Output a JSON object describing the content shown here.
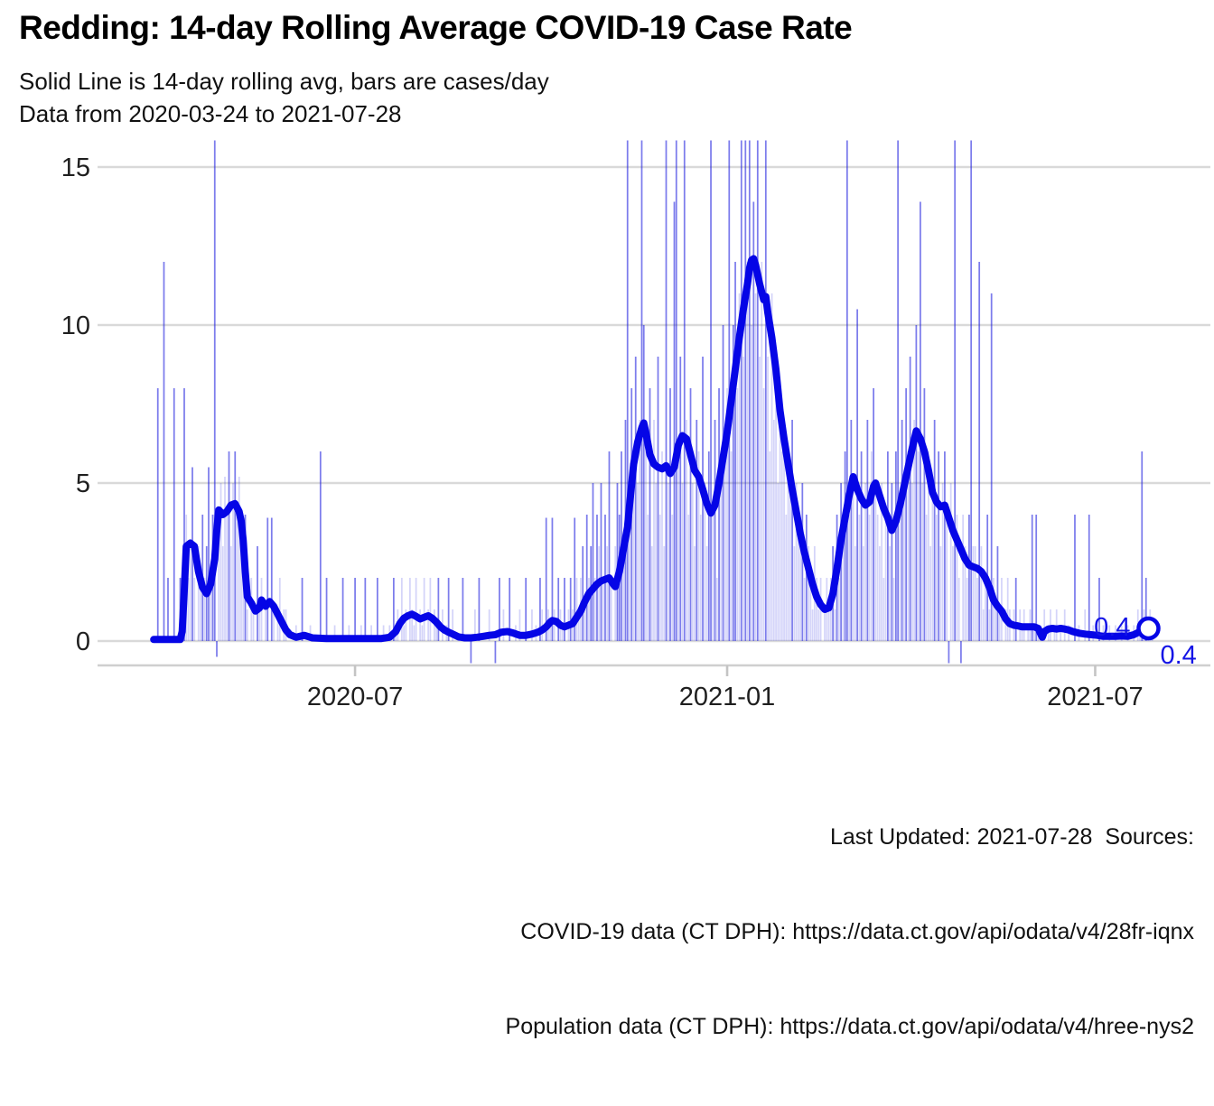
{
  "title": "Redding: 14-day Rolling Average COVID-19 Case Rate",
  "subtitle": {
    "line1": "Solid Line is 14-day rolling avg, bars are cases/day",
    "line2": "Data from 2020-03-24 to 2021-07-28"
  },
  "caption": {
    "line1": "Last Updated: 2021-07-28  Sources:",
    "line2": "COVID-19 data (CT DPH): https://data.ct.gov/api/odata/v4/28fr-iqnx",
    "line3": "Population data (CT DPH): https://data.ct.gov/api/odata/v4/hree-nys2"
  },
  "colors": {
    "line": "#0505e6",
    "bar": "#1010dc",
    "grid": "#d9d9d9",
    "axis_line": "#cfcfcf",
    "tick_mark": "#c4c4c4",
    "tick_text": "#1f1f1f",
    "endpoint_label": "#1414e6",
    "background": "#ffffff"
  },
  "chart_data": {
    "type": "bar",
    "title": "Redding: 14-day Rolling Average COVID-19 Case Rate",
    "xlabel": "",
    "ylabel": "",
    "start_date": "2020-03-24",
    "end_date": "2021-07-28",
    "ylim": [
      -0.77,
      15.86
    ],
    "grid": "horizontal",
    "legend": "none",
    "y_ticks": [
      0,
      5,
      10,
      15
    ],
    "x_ticks": [
      {
        "label": "2020-07",
        "day": 99
      },
      {
        "label": "2021-01",
        "day": 282
      },
      {
        "label": "2021-07",
        "day": 463
      }
    ],
    "endpoint": {
      "day": 491,
      "value": 0.4,
      "label_left": "0.4",
      "label_right": "0.4"
    },
    "rolling_avg_line": [
      [
        0,
        0.05
      ],
      [
        13,
        0.05
      ],
      [
        14,
        0.3
      ],
      [
        15,
        1.6
      ],
      [
        16,
        3
      ],
      [
        18,
        3.1
      ],
      [
        20,
        3
      ],
      [
        22,
        2.2
      ],
      [
        24,
        1.7
      ],
      [
        26,
        1.5
      ],
      [
        28,
        1.8
      ],
      [
        30,
        2.6
      ],
      [
        31,
        3.5
      ],
      [
        32,
        4.15
      ],
      [
        34,
        4
      ],
      [
        36,
        4.1
      ],
      [
        38,
        4.3
      ],
      [
        40,
        4.35
      ],
      [
        42,
        4.1
      ],
      [
        43,
        3.8
      ],
      [
        44,
        3.2
      ],
      [
        45,
        2.2
      ],
      [
        46,
        1.4
      ],
      [
        48,
        1.2
      ],
      [
        50,
        0.95
      ],
      [
        52,
        1.05
      ],
      [
        53,
        1.3
      ],
      [
        55,
        1.1
      ],
      [
        57,
        1.25
      ],
      [
        59,
        1.1
      ],
      [
        61,
        0.85
      ],
      [
        63,
        0.6
      ],
      [
        65,
        0.35
      ],
      [
        67,
        0.2
      ],
      [
        70,
        0.12
      ],
      [
        74,
        0.18
      ],
      [
        78,
        0.1
      ],
      [
        85,
        0.08
      ],
      [
        95,
        0.08
      ],
      [
        105,
        0.08
      ],
      [
        112,
        0.08
      ],
      [
        116,
        0.12
      ],
      [
        119,
        0.3
      ],
      [
        121,
        0.55
      ],
      [
        123,
        0.72
      ],
      [
        125,
        0.8
      ],
      [
        127,
        0.85
      ],
      [
        129,
        0.78
      ],
      [
        131,
        0.7
      ],
      [
        133,
        0.75
      ],
      [
        135,
        0.8
      ],
      [
        137,
        0.72
      ],
      [
        139,
        0.6
      ],
      [
        141,
        0.45
      ],
      [
        143,
        0.35
      ],
      [
        145,
        0.28
      ],
      [
        147,
        0.22
      ],
      [
        150,
        0.13
      ],
      [
        153,
        0.1
      ],
      [
        156,
        0.1
      ],
      [
        159,
        0.12
      ],
      [
        162,
        0.15
      ],
      [
        165,
        0.18
      ],
      [
        168,
        0.2
      ],
      [
        171,
        0.28
      ],
      [
        174,
        0.3
      ],
      [
        177,
        0.25
      ],
      [
        180,
        0.18
      ],
      [
        183,
        0.18
      ],
      [
        186,
        0.22
      ],
      [
        189,
        0.28
      ],
      [
        191,
        0.35
      ],
      [
        193,
        0.45
      ],
      [
        195,
        0.6
      ],
      [
        196,
        0.65
      ],
      [
        198,
        0.62
      ],
      [
        200,
        0.5
      ],
      [
        202,
        0.45
      ],
      [
        204,
        0.5
      ],
      [
        206,
        0.55
      ],
      [
        208,
        0.75
      ],
      [
        210,
        0.95
      ],
      [
        212,
        1.25
      ],
      [
        214,
        1.5
      ],
      [
        216,
        1.65
      ],
      [
        218,
        1.8
      ],
      [
        220,
        1.9
      ],
      [
        222,
        1.95
      ],
      [
        224,
        2
      ],
      [
        226,
        1.8
      ],
      [
        227,
        1.72
      ],
      [
        229,
        2.2
      ],
      [
        231,
        2.9
      ],
      [
        233,
        3.6
      ],
      [
        234,
        4.3
      ],
      [
        236,
        5.6
      ],
      [
        238,
        6.3
      ],
      [
        240,
        6.75
      ],
      [
        241,
        6.9
      ],
      [
        242,
        6.6
      ],
      [
        244,
        5.9
      ],
      [
        246,
        5.6
      ],
      [
        248,
        5.5
      ],
      [
        250,
        5.45
      ],
      [
        252,
        5.55
      ],
      [
        254,
        5.3
      ],
      [
        256,
        5.5
      ],
      [
        258,
        6.2
      ],
      [
        260,
        6.5
      ],
      [
        262,
        6.4
      ],
      [
        264,
        5.9
      ],
      [
        266,
        5.4
      ],
      [
        268,
        5.2
      ],
      [
        270,
        4.8
      ],
      [
        272,
        4.35
      ],
      [
        274,
        4.05
      ],
      [
        276,
        4.3
      ],
      [
        278,
        5
      ],
      [
        280,
        5.8
      ],
      [
        282,
        6.6
      ],
      [
        284,
        7.6
      ],
      [
        286,
        8.6
      ],
      [
        288,
        9.6
      ],
      [
        290,
        10.5
      ],
      [
        292,
        11.3
      ],
      [
        293,
        11.8
      ],
      [
        294,
        12.05
      ],
      [
        295,
        12.1
      ],
      [
        296,
        11.9
      ],
      [
        298,
        11.3
      ],
      [
        300,
        10.8
      ],
      [
        301,
        10.9
      ],
      [
        302,
        10.4
      ],
      [
        304,
        9.6
      ],
      [
        306,
        8.6
      ],
      [
        308,
        7.3
      ],
      [
        310,
        6.4
      ],
      [
        312,
        5.6
      ],
      [
        314,
        4.8
      ],
      [
        316,
        4.1
      ],
      [
        318,
        3.4
      ],
      [
        320,
        2.8
      ],
      [
        322,
        2.3
      ],
      [
        324,
        1.8
      ],
      [
        326,
        1.4
      ],
      [
        328,
        1.15
      ],
      [
        330,
        1
      ],
      [
        332,
        1.05
      ],
      [
        334,
        1.5
      ],
      [
        336,
        2.3
      ],
      [
        338,
        3.2
      ],
      [
        340,
        3.9
      ],
      [
        342,
        4.6
      ],
      [
        344,
        5.2
      ],
      [
        346,
        4.8
      ],
      [
        348,
        4.5
      ],
      [
        350,
        4.3
      ],
      [
        352,
        4.4
      ],
      [
        354,
        4.9
      ],
      [
        355,
        5
      ],
      [
        357,
        4.6
      ],
      [
        359,
        4.2
      ],
      [
        361,
        3.9
      ],
      [
        363,
        3.5
      ],
      [
        365,
        3.8
      ],
      [
        367,
        4.3
      ],
      [
        369,
        4.9
      ],
      [
        371,
        5.5
      ],
      [
        373,
        6.1
      ],
      [
        375,
        6.65
      ],
      [
        377,
        6.4
      ],
      [
        379,
        6
      ],
      [
        381,
        5.4
      ],
      [
        383,
        4.7
      ],
      [
        385,
        4.4
      ],
      [
        387,
        4.25
      ],
      [
        389,
        4.3
      ],
      [
        391,
        3.9
      ],
      [
        393,
        3.5
      ],
      [
        395,
        3.2
      ],
      [
        397,
        2.9
      ],
      [
        399,
        2.6
      ],
      [
        401,
        2.4
      ],
      [
        403,
        2.35
      ],
      [
        405,
        2.3
      ],
      [
        407,
        2.2
      ],
      [
        409,
        2
      ],
      [
        411,
        1.7
      ],
      [
        413,
        1.3
      ],
      [
        415,
        1.1
      ],
      [
        417,
        0.95
      ],
      [
        419,
        0.7
      ],
      [
        421,
        0.55
      ],
      [
        423,
        0.5
      ],
      [
        425,
        0.48
      ],
      [
        427,
        0.45
      ],
      [
        429,
        0.45
      ],
      [
        431,
        0.45
      ],
      [
        433,
        0.45
      ],
      [
        435,
        0.4
      ],
      [
        436,
        0.25
      ],
      [
        437,
        0.12
      ],
      [
        438,
        0.3
      ],
      [
        440,
        0.38
      ],
      [
        442,
        0.4
      ],
      [
        444,
        0.38
      ],
      [
        446,
        0.4
      ],
      [
        448,
        0.38
      ],
      [
        450,
        0.35
      ],
      [
        452,
        0.3
      ],
      [
        455,
        0.25
      ],
      [
        458,
        0.22
      ],
      [
        461,
        0.2
      ],
      [
        464,
        0.18
      ],
      [
        467,
        0.15
      ],
      [
        470,
        0.15
      ],
      [
        473,
        0.15
      ],
      [
        476,
        0.16
      ],
      [
        479,
        0.15
      ],
      [
        482,
        0.2
      ],
      [
        485,
        0.3
      ],
      [
        488,
        0.38
      ],
      [
        491,
        0.4
      ]
    ],
    "daily_cases_bars": [
      0,
      0,
      8,
      0,
      0,
      12,
      0,
      2,
      0,
      0,
      8,
      0,
      0,
      2,
      2,
      8,
      4,
      2,
      3,
      5.5,
      2,
      0,
      3,
      2,
      4,
      2,
      3,
      5.5,
      2,
      4,
      15.9,
      -0.5,
      4,
      5,
      3,
      5.2,
      4,
      6,
      3,
      5,
      6,
      4,
      5.2,
      3,
      2,
      4,
      1,
      0,
      2,
      1,
      0,
      3,
      1,
      2,
      0,
      1,
      3.9,
      0,
      3.9,
      1,
      0,
      1,
      2,
      0,
      1,
      1,
      0,
      0,
      0,
      0,
      0.5,
      0,
      0,
      2,
      0,
      0,
      0,
      0.5,
      0,
      0,
      0,
      0,
      6,
      0,
      0,
      2,
      0,
      0,
      0,
      0.5,
      0,
      0,
      0,
      2,
      0,
      0,
      0.5,
      0,
      0,
      2,
      0,
      0,
      0.5,
      0,
      2,
      0,
      0,
      0.5,
      0,
      0,
      2,
      0,
      0,
      0.5,
      0,
      0,
      0.5,
      0,
      2,
      0.5,
      1,
      0,
      2,
      0.5,
      1,
      0,
      2,
      1,
      0.5,
      2,
      0,
      1,
      0.5,
      2,
      0,
      1,
      2,
      0,
      1,
      0.5,
      2,
      0,
      1,
      0,
      0.5,
      2,
      0,
      1,
      0,
      0,
      0,
      0,
      2,
      0,
      0,
      0,
      -0.7,
      0,
      1,
      0,
      2,
      0,
      0,
      0,
      0,
      1,
      0,
      0,
      -0.7,
      0,
      2,
      0,
      1,
      0,
      0,
      2,
      0,
      0,
      0.5,
      0,
      1,
      0,
      0,
      2,
      0,
      0,
      1,
      0,
      0.5,
      0,
      2,
      1,
      0,
      3.9,
      1,
      0.5,
      3.9,
      1,
      0,
      2,
      1,
      0.5,
      2,
      0,
      1,
      2,
      1,
      3.9,
      2,
      1,
      2,
      3,
      1,
      4,
      2,
      3,
      5,
      2,
      4,
      3,
      5,
      2,
      4,
      3,
      6,
      2,
      0,
      3,
      5,
      4,
      6,
      3,
      7,
      15.9,
      5,
      8,
      6,
      9,
      5,
      7,
      15.9,
      10,
      6,
      4,
      8,
      3,
      7,
      5,
      9,
      4,
      6,
      3,
      15.9,
      5,
      8,
      4,
      13.9,
      15.9,
      6,
      9,
      5,
      15.9,
      7,
      4,
      8,
      5,
      3,
      7,
      6,
      4,
      9,
      5,
      3,
      6,
      15.9,
      4,
      7,
      2,
      8,
      5,
      10,
      6,
      8,
      15.9,
      6,
      10,
      12,
      8,
      11,
      15.9,
      9,
      15.9,
      12,
      15.9,
      10,
      13.9,
      11,
      15.9,
      9,
      12,
      8,
      15.9,
      9,
      6,
      11,
      7,
      9,
      5,
      8,
      6,
      7,
      4,
      6,
      5,
      7,
      3,
      5,
      4,
      3,
      5,
      2,
      4,
      3,
      2,
      1,
      3,
      2,
      1,
      2,
      0,
      1,
      2,
      1,
      2,
      3,
      1,
      4,
      2,
      5,
      3,
      6,
      15.9,
      4,
      7,
      5,
      3,
      10.5,
      4,
      6,
      3,
      5,
      7,
      4,
      6,
      8,
      5,
      4,
      3,
      5,
      2,
      4,
      6,
      3,
      5,
      2,
      6,
      15.9,
      4,
      7,
      5,
      8,
      6,
      9,
      5,
      7,
      10,
      6,
      13.9,
      5,
      8,
      4,
      6,
      3,
      5,
      7,
      4,
      6,
      3,
      5,
      6,
      4,
      -0.7,
      5,
      3,
      15.9,
      4,
      2,
      -0.7,
      4,
      3,
      2,
      4,
      15.9,
      3,
      3,
      2,
      12,
      3,
      1,
      2,
      4,
      1,
      11,
      2,
      1,
      3,
      1,
      2,
      0,
      1,
      2,
      1,
      0,
      1,
      2,
      0,
      1,
      0.5,
      1,
      0,
      0.5,
      1,
      4,
      0.5,
      4,
      0.5,
      0.5,
      0,
      1,
      0,
      0.5,
      1,
      0,
      0.5,
      1,
      0,
      0.5,
      0,
      1,
      0,
      0.5,
      0,
      0,
      4,
      0,
      0.5,
      0,
      0,
      1,
      0,
      4,
      0,
      0.5,
      0,
      0,
      2,
      0,
      0.5,
      0,
      0,
      0.5,
      0,
      0,
      0.5,
      0,
      0,
      0.5,
      0,
      0,
      0.5,
      0,
      0,
      0.5,
      0,
      1,
      0.5,
      6,
      1,
      2,
      0.5,
      1,
      0.4
    ]
  }
}
